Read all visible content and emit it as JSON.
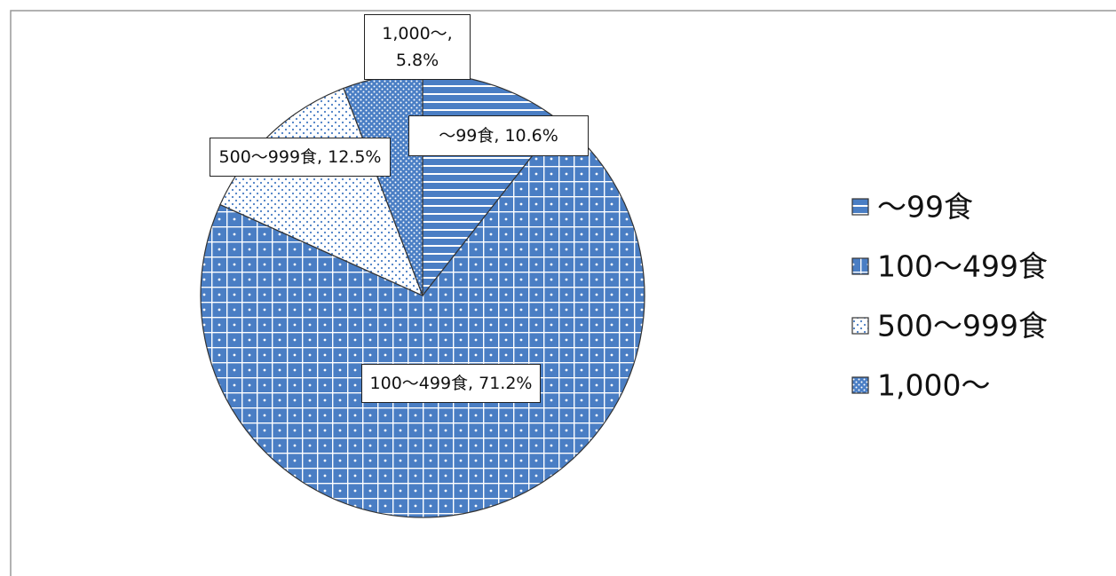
{
  "chart_data": {
    "type": "pie",
    "categories": [
      "～99食",
      "100～499食",
      "500～999食",
      "1,000～"
    ],
    "values": [
      10.6,
      71.2,
      12.5,
      5.8
    ],
    "value_labels": [
      "～99食, 10.6%",
      "100～499食, 71.2%",
      "500～999食, 12.5%",
      "1,000～, 5.8%"
    ],
    "colors": [
      "#4a7ec4",
      "#4a7ec4",
      "#4a7ec4",
      "#4a7ec4"
    ],
    "legend": "right"
  }
}
